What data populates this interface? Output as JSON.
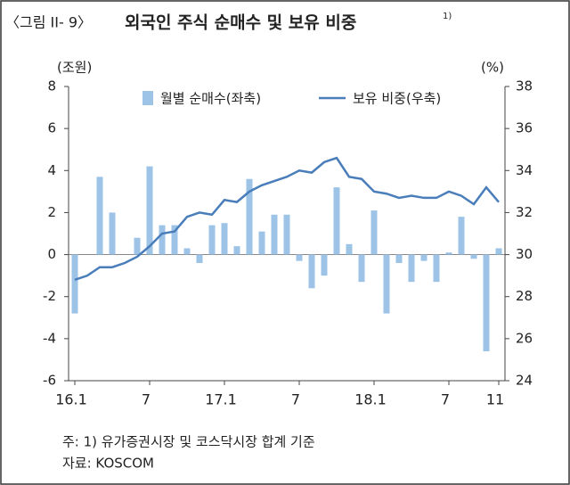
{
  "chart_data": {
    "type": "bar_line",
    "figure_label": "〈그림 II- 9〉",
    "title": "외국인 주식 순매수 및 보유 비중",
    "title_note": "1)",
    "y_unit": "(조원)",
    "y2_unit": "(%)",
    "categories": [
      "16.1",
      null,
      null,
      null,
      null,
      null,
      "7",
      null,
      null,
      null,
      null,
      null,
      "17.1",
      null,
      null,
      null,
      null,
      null,
      "7",
      null,
      null,
      null,
      null,
      null,
      "18.1",
      null,
      null,
      null,
      null,
      null,
      "7",
      null,
      null,
      null,
      "11"
    ],
    "series": [
      {
        "name": "월별 순매수(좌축)",
        "type": "bar",
        "axis": "y",
        "color": "#9dc3e6",
        "values": [
          -2.8,
          0,
          3.7,
          2.0,
          0,
          0.8,
          4.2,
          1.4,
          1.4,
          0.3,
          -0.4,
          1.4,
          1.5,
          0.4,
          3.6,
          1.1,
          1.9,
          1.9,
          -0.3,
          -1.6,
          -1.0,
          3.2,
          0.5,
          -1.3,
          2.1,
          -2.8,
          -0.4,
          -1.3,
          -0.3,
          -1.3,
          0.1,
          1.8,
          -0.2,
          -4.6,
          0.3
        ]
      },
      {
        "name": "보유 비중(우축)",
        "type": "line",
        "axis": "y2",
        "color": "#4a7ebb",
        "values": [
          28.8,
          29.0,
          29.4,
          29.4,
          29.6,
          29.9,
          30.4,
          31.0,
          31.1,
          31.8,
          32.0,
          31.9,
          32.6,
          32.5,
          33.0,
          33.3,
          33.5,
          33.7,
          34.0,
          33.9,
          34.4,
          34.6,
          33.7,
          33.6,
          33.0,
          32.9,
          32.7,
          32.8,
          32.7,
          32.7,
          33.0,
          32.8,
          32.4,
          33.2,
          32.5
        ]
      }
    ],
    "ylim": [
      -6,
      8
    ],
    "yticks": [
      -6,
      -4,
      -2,
      0,
      2,
      4,
      6,
      8
    ],
    "y2lim": [
      24,
      38
    ],
    "y2ticks": [
      24,
      26,
      28,
      30,
      32,
      34,
      36,
      38
    ],
    "notes": [
      "주: 1) 유가증권시장 및 코스닥시장 합계 기준",
      "자료: KOSCOM"
    ]
  }
}
